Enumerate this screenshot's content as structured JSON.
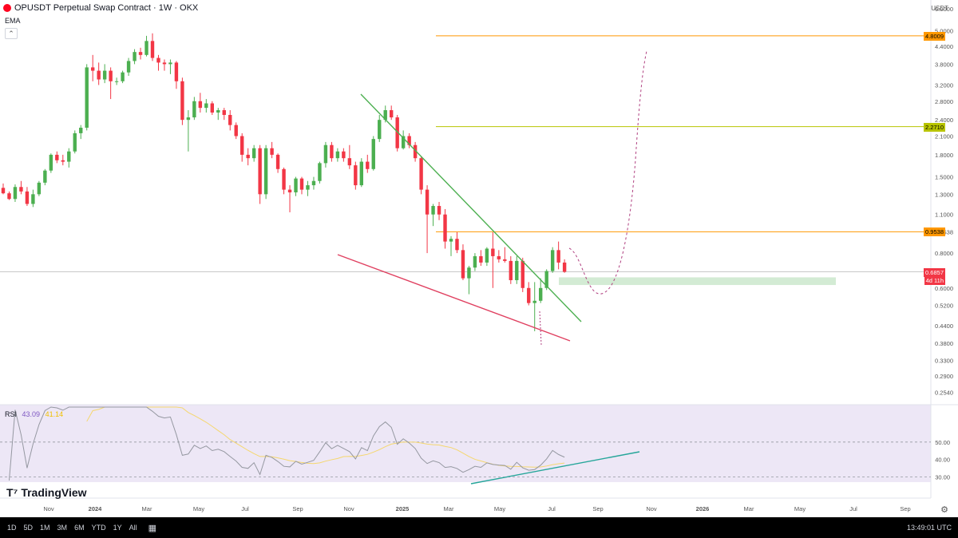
{
  "header": {
    "symbol_title": "OPUSDT Perpetual Swap Contract · 1W · OKX",
    "indicator": "EMA",
    "currency": "USDT"
  },
  "colors": {
    "up": "#26a69a",
    "up_candle": "#4caf50",
    "down": "#f23645",
    "orange_level": "#ff9800",
    "olive_level": "#b8c400",
    "green_line": "#4caf50",
    "red_line": "#e04060",
    "support_zone": "#c8e6c9",
    "rsi_bg": "#ede7f6",
    "rsi_line": "#9598a1",
    "rsi_ma": "#f5d76e",
    "rsi_trend": "#26a69a"
  },
  "chart_data": {
    "type": "candlestick",
    "title": "OPUSDT Perpetual Swap Contract · 1W · OKX",
    "y_scale": "log",
    "ylim": [
      0.24,
      6.2
    ],
    "y_ticks": [
      "6.0000",
      "5.0000",
      "4.4000",
      "3.8000",
      "3.2000",
      "2.8000",
      "2.4000",
      "2.1000",
      "1.8000",
      "1.5000",
      "1.3000",
      "1.1000",
      "0.9538",
      "0.8000",
      "0.6000",
      "0.5200",
      "0.4400",
      "0.3800",
      "0.3300",
      "0.2900",
      "0.2540"
    ],
    "x_ticks": [
      "Nov",
      "2024",
      "Mar",
      "May",
      "Jul",
      "Sep",
      "Nov",
      "2025",
      "Mar",
      "May",
      "Jul",
      "Sep",
      "Nov",
      "2026",
      "Mar",
      "May",
      "Jul",
      "Sep"
    ],
    "price_labels": [
      {
        "value": 4.8009,
        "text": "4.8009",
        "style": "orange"
      },
      {
        "value": 2.271,
        "text": "2.2710",
        "style": "olive"
      },
      {
        "value": 0.9538,
        "text": "0.9538",
        "style": "orange"
      },
      {
        "value": 0.6857,
        "text": "0.6857",
        "style": "current"
      }
    ],
    "countdown": "4d 11h",
    "horizontal_levels": [
      {
        "value": 4.8009,
        "color": "orange"
      },
      {
        "value": 2.271,
        "color": "olive"
      },
      {
        "value": 0.9538,
        "color": "orange"
      }
    ],
    "candles": [
      [
        1.37,
        1.42,
        1.3,
        1.31
      ],
      [
        1.31,
        1.33,
        1.24,
        1.25
      ],
      [
        1.25,
        1.41,
        1.22,
        1.38
      ],
      [
        1.38,
        1.45,
        1.3,
        1.33
      ],
      [
        1.33,
        1.38,
        1.18,
        1.2
      ],
      [
        1.2,
        1.35,
        1.17,
        1.3
      ],
      [
        1.3,
        1.45,
        1.28,
        1.43
      ],
      [
        1.43,
        1.6,
        1.4,
        1.58
      ],
      [
        1.58,
        1.82,
        1.55,
        1.8
      ],
      [
        1.8,
        1.85,
        1.68,
        1.72
      ],
      [
        1.72,
        1.8,
        1.65,
        1.7
      ],
      [
        1.7,
        1.9,
        1.62,
        1.85
      ],
      [
        1.85,
        2.2,
        1.82,
        2.15
      ],
      [
        2.15,
        2.3,
        2.05,
        2.25
      ],
      [
        2.25,
        3.8,
        2.2,
        3.7
      ],
      [
        3.7,
        4.1,
        3.3,
        3.6
      ],
      [
        3.6,
        3.85,
        3.2,
        3.35
      ],
      [
        3.35,
        3.8,
        3.25,
        3.6
      ],
      [
        3.6,
        3.7,
        2.85,
        3.3
      ],
      [
        3.3,
        3.4,
        3.2,
        3.3
      ],
      [
        3.3,
        3.6,
        3.25,
        3.55
      ],
      [
        3.55,
        4.0,
        3.45,
        3.9
      ],
      [
        3.9,
        4.3,
        3.8,
        4.2
      ],
      [
        4.2,
        4.35,
        3.95,
        4.1
      ],
      [
        4.1,
        4.8,
        4.05,
        4.6
      ],
      [
        4.6,
        4.9,
        3.9,
        4.0
      ],
      [
        4.0,
        4.1,
        3.6,
        3.85
      ],
      [
        3.85,
        3.95,
        3.6,
        3.8
      ],
      [
        3.8,
        3.95,
        3.5,
        3.85
      ],
      [
        3.85,
        3.9,
        3.1,
        3.3
      ],
      [
        3.3,
        3.4,
        2.3,
        2.4
      ],
      [
        2.4,
        2.6,
        1.85,
        2.45
      ],
      [
        2.45,
        2.9,
        2.4,
        2.8
      ],
      [
        2.8,
        3.0,
        2.55,
        2.65
      ],
      [
        2.65,
        2.85,
        2.55,
        2.75
      ],
      [
        2.75,
        2.8,
        2.5,
        2.55
      ],
      [
        2.55,
        2.65,
        2.4,
        2.6
      ],
      [
        2.6,
        2.65,
        2.4,
        2.5
      ],
      [
        2.5,
        2.6,
        2.2,
        2.3
      ],
      [
        2.3,
        2.35,
        2.05,
        2.1
      ],
      [
        2.1,
        2.15,
        1.7,
        1.8
      ],
      [
        1.8,
        1.9,
        1.65,
        1.75
      ],
      [
        1.75,
        1.95,
        1.7,
        1.9
      ],
      [
        1.9,
        1.95,
        1.2,
        1.3
      ],
      [
        1.3,
        1.95,
        1.25,
        1.9
      ],
      [
        1.9,
        2.0,
        1.75,
        1.8
      ],
      [
        1.8,
        1.82,
        1.55,
        1.6
      ],
      [
        1.6,
        1.62,
        1.3,
        1.35
      ],
      [
        1.35,
        1.4,
        1.12,
        1.32
      ],
      [
        1.32,
        1.5,
        1.28,
        1.48
      ],
      [
        1.48,
        1.5,
        1.3,
        1.35
      ],
      [
        1.35,
        1.45,
        1.28,
        1.4
      ],
      [
        1.4,
        1.5,
        1.35,
        1.45
      ],
      [
        1.45,
        1.7,
        1.42,
        1.68
      ],
      [
        1.68,
        2.0,
        1.62,
        1.95
      ],
      [
        1.95,
        2.0,
        1.7,
        1.75
      ],
      [
        1.75,
        1.9,
        1.7,
        1.85
      ],
      [
        1.85,
        1.9,
        1.7,
        1.75
      ],
      [
        1.75,
        1.95,
        1.6,
        1.65
      ],
      [
        1.65,
        1.7,
        1.35,
        1.4
      ],
      [
        1.4,
        1.75,
        1.38,
        1.7
      ],
      [
        1.7,
        1.8,
        1.55,
        1.6
      ],
      [
        1.6,
        2.1,
        1.58,
        2.05
      ],
      [
        2.05,
        2.5,
        2.0,
        2.4
      ],
      [
        2.4,
        2.7,
        2.35,
        2.6
      ],
      [
        2.6,
        2.7,
        2.4,
        2.45
      ],
      [
        2.45,
        2.5,
        1.85,
        1.9
      ],
      [
        1.9,
        2.2,
        1.88,
        2.1
      ],
      [
        2.1,
        2.15,
        1.9,
        1.95
      ],
      [
        1.95,
        2.0,
        1.7,
        1.75
      ],
      [
        1.75,
        1.78,
        1.3,
        1.35
      ],
      [
        1.35,
        1.4,
        0.8,
        1.1
      ],
      [
        1.1,
        1.2,
        1.0,
        1.18
      ],
      [
        1.18,
        1.22,
        1.05,
        1.1
      ],
      [
        1.1,
        1.15,
        0.83,
        0.88
      ],
      [
        0.88,
        0.92,
        0.78,
        0.9
      ],
      [
        0.9,
        0.95,
        0.8,
        0.82
      ],
      [
        0.82,
        0.86,
        0.64,
        0.65
      ],
      [
        0.65,
        0.72,
        0.57,
        0.71
      ],
      [
        0.71,
        0.8,
        0.69,
        0.78
      ],
      [
        0.78,
        0.82,
        0.72,
        0.74
      ],
      [
        0.74,
        0.84,
        0.72,
        0.83
      ],
      [
        0.83,
        0.95,
        0.6,
        0.78
      ],
      [
        0.78,
        0.82,
        0.74,
        0.76
      ],
      [
        0.76,
        0.84,
        0.74,
        0.75
      ],
      [
        0.75,
        0.78,
        0.62,
        0.64
      ],
      [
        0.64,
        0.78,
        0.62,
        0.75
      ],
      [
        0.75,
        0.77,
        0.58,
        0.6
      ],
      [
        0.6,
        0.63,
        0.52,
        0.53
      ],
      [
        0.53,
        0.63,
        0.42,
        0.54
      ],
      [
        0.54,
        0.65,
        0.53,
        0.6
      ],
      [
        0.6,
        0.7,
        0.59,
        0.69
      ],
      [
        0.69,
        0.84,
        0.68,
        0.82
      ],
      [
        0.82,
        0.88,
        0.7,
        0.74
      ],
      [
        0.74,
        0.76,
        0.68,
        0.6857
      ]
    ],
    "rsi": {
      "label": "RSI",
      "value": 43.09,
      "ma_value": "41.14",
      "ylim": [
        28,
        70
      ],
      "y_ticks": [
        50.0,
        40.0,
        30.0
      ],
      "levels": [
        50,
        30
      ]
    }
  },
  "bottom_bar": {
    "ranges": [
      "1D",
      "5D",
      "1M",
      "3M",
      "6M",
      "YTD",
      "1Y",
      "All"
    ],
    "time": "13:49:01 UTC"
  },
  "brand": "TradingView"
}
